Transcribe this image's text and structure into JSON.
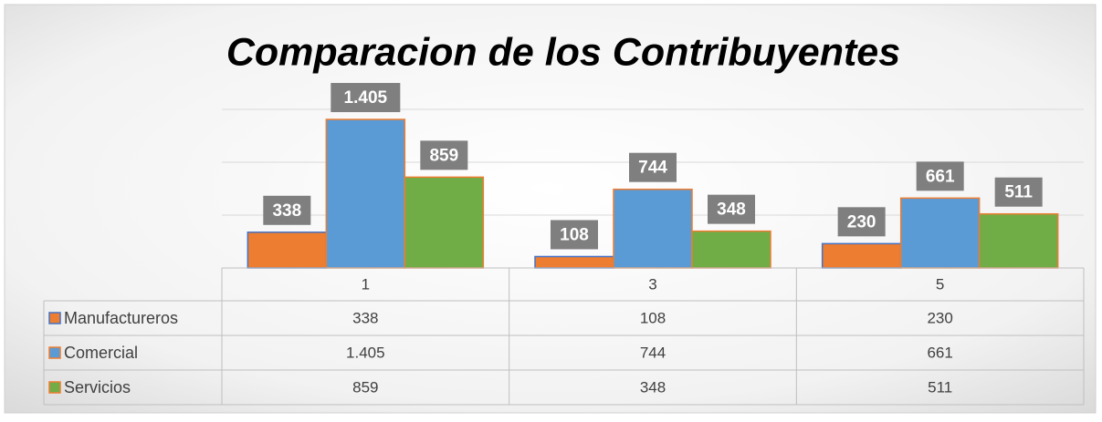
{
  "chart_data": {
    "type": "bar",
    "title": "Comparacion de los Contribuyentes",
    "categories": [
      "1",
      "3",
      "5"
    ],
    "series": [
      {
        "name": "Manufactureros",
        "color": "#ed7d31",
        "values": [
          338,
          108,
          230
        ],
        "value_labels": [
          "338",
          "108",
          "230"
        ]
      },
      {
        "name": "Comercial",
        "color": "#5b9bd5",
        "values": [
          1405,
          744,
          661
        ],
        "value_labels": [
          "1.405",
          "744",
          "661"
        ]
      },
      {
        "name": "Servicios",
        "color": "#70ad47",
        "values": [
          859,
          348,
          511
        ],
        "value_labels": [
          "859",
          "348",
          "511"
        ]
      }
    ],
    "ylim": [
      0,
      1500
    ],
    "yticks": [
      0,
      500,
      1000,
      1500
    ],
    "grid": true,
    "data_table": true
  }
}
